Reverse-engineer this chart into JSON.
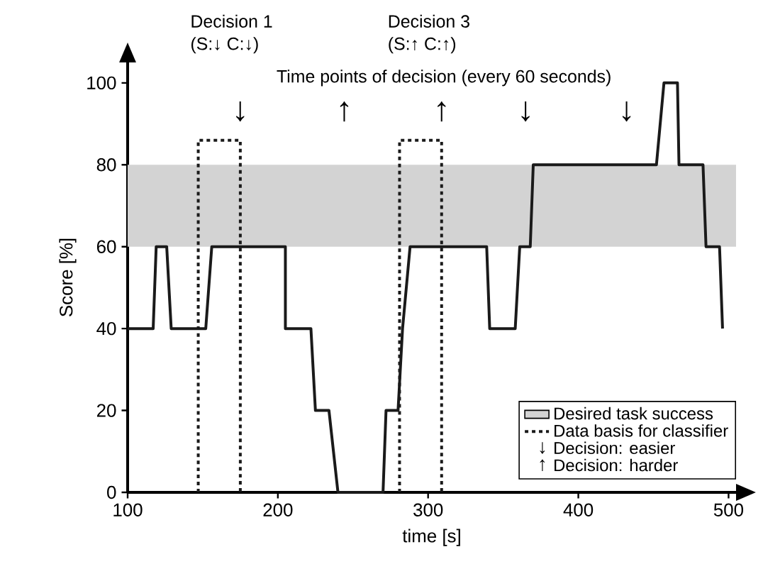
{
  "chart_data": {
    "type": "line",
    "xlabel": "time [s]",
    "ylabel": "Score [%]",
    "xlim": [
      100,
      505
    ],
    "ylim": [
      0,
      105
    ],
    "xticks": [
      100,
      200,
      300,
      400,
      500
    ],
    "yticks": [
      0,
      20,
      40,
      60,
      80,
      100
    ],
    "grid": false,
    "legend": "bottom right",
    "bands": [
      {
        "axis": "y",
        "from": 60,
        "to": 80,
        "label": "Desired task success",
        "color": "#d3d3d3"
      }
    ],
    "series": [
      {
        "color": "#1a1a1a",
        "line_style": "solid",
        "x": [
          100,
          117,
          119,
          126,
          129,
          152,
          156,
          205,
          205,
          222,
          225,
          234,
          240,
          270,
          272,
          280,
          283,
          288,
          339,
          341,
          358,
          361,
          368,
          370,
          452,
          457,
          466,
          467,
          483,
          485,
          494,
          496
        ],
        "values": [
          40,
          40,
          60,
          60,
          40,
          40,
          60,
          60,
          40,
          40,
          20,
          20,
          0,
          0,
          20,
          20,
          40,
          60,
          60,
          40,
          40,
          60,
          60,
          80,
          80,
          100,
          100,
          80,
          80,
          60,
          60,
          40
        ]
      },
      {
        "type": "line",
        "name": "Data basis for classifier",
        "color": "#1a1a1a",
        "line_style": "dotted",
        "x": [
          147,
          147,
          175,
          175,
          null,
          281,
          281,
          309,
          309
        ],
        "values": [
          0,
          86,
          86,
          0,
          null,
          0,
          86,
          86,
          0
        ]
      }
    ],
    "annotations": [
      "Decision 1",
      "(S:↓  C:↓)",
      "Decision 3",
      "(S:↑  C:↑)",
      "Time points of decision (every 60 seconds)",
      "↓",
      "↑",
      "↑",
      "↓",
      "↓",
      "↓",
      "Decision: easier",
      "↑",
      "Decision: harder"
    ]
  }
}
